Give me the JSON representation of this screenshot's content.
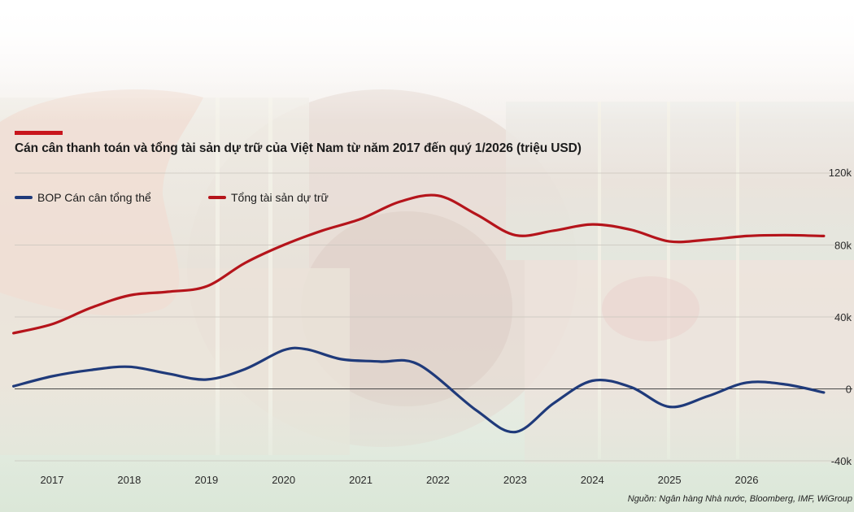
{
  "header": {
    "title": "Cán cân thanh toán và tổng tài sản dự trữ của Việt Nam từ năm 2017 đến quý 1/2026 (triệu USD)"
  },
  "footer": {
    "source": "Nguồn: Ngân hàng Nhà nước, Bloomberg, IMF, WiGroup"
  },
  "colors": {
    "accent": "#c8161d",
    "bop": "#1f3a7a",
    "reserves": "#b5141b"
  },
  "chart_data": {
    "type": "line",
    "title": "Cán cân thanh toán và tổng tài sản dự trữ của Việt Nam từ năm 2017 đến quý 1/2026 (triệu USD)",
    "xlabel": "",
    "ylabel": "",
    "x_ticks": [
      "2017",
      "2018",
      "2019",
      "2020",
      "2021",
      "2022",
      "2023",
      "2024",
      "2025",
      "2026"
    ],
    "y_ticks": [
      {
        "value": 120000,
        "label": "120k"
      },
      {
        "value": 80000,
        "label": "80k"
      },
      {
        "value": 40000,
        "label": "40k"
      },
      {
        "value": 0,
        "label": "0"
      },
      {
        "value": -40000,
        "label": "-40k"
      }
    ],
    "ylim": [
      -40000,
      120000
    ],
    "grid": true,
    "legend_position": "top-left",
    "series": [
      {
        "name": "BOP Cán cân tổng thể",
        "color": "#1f3a7a",
        "points": [
          {
            "x": 2016.5,
            "y": 1500
          },
          {
            "x": 2017.0,
            "y": 7000
          },
          {
            "x": 2017.5,
            "y": 10500
          },
          {
            "x": 2018.0,
            "y": 12300
          },
          {
            "x": 2018.5,
            "y": 8500
          },
          {
            "x": 2019.0,
            "y": 5200
          },
          {
            "x": 2019.5,
            "y": 11000
          },
          {
            "x": 2020.0,
            "y": 21500
          },
          {
            "x": 2020.3,
            "y": 22000
          },
          {
            "x": 2020.75,
            "y": 16500
          },
          {
            "x": 2021.25,
            "y": 15200
          },
          {
            "x": 2021.75,
            "y": 13500
          },
          {
            "x": 2022.5,
            "y": -12000
          },
          {
            "x": 2023.0,
            "y": -24000
          },
          {
            "x": 2023.5,
            "y": -8000
          },
          {
            "x": 2024.0,
            "y": 4500
          },
          {
            "x": 2024.5,
            "y": 1000
          },
          {
            "x": 2025.0,
            "y": -10000
          },
          {
            "x": 2025.5,
            "y": -4000
          },
          {
            "x": 2026.0,
            "y": 3500
          },
          {
            "x": 2026.5,
            "y": 2500
          },
          {
            "x": 2027.0,
            "y": -2000
          }
        ]
      },
      {
        "name": "Tổng tài sản dự trữ",
        "color": "#b5141b",
        "points": [
          {
            "x": 2016.5,
            "y": 31000
          },
          {
            "x": 2017.0,
            "y": 36000
          },
          {
            "x": 2017.5,
            "y": 45000
          },
          {
            "x": 2018.0,
            "y": 52000
          },
          {
            "x": 2018.5,
            "y": 54000
          },
          {
            "x": 2019.0,
            "y": 57000
          },
          {
            "x": 2019.5,
            "y": 70000
          },
          {
            "x": 2020.0,
            "y": 80000
          },
          {
            "x": 2020.5,
            "y": 88000
          },
          {
            "x": 2021.0,
            "y": 94500
          },
          {
            "x": 2021.5,
            "y": 104000
          },
          {
            "x": 2022.0,
            "y": 107500
          },
          {
            "x": 2022.5,
            "y": 97000
          },
          {
            "x": 2023.0,
            "y": 85500
          },
          {
            "x": 2023.5,
            "y": 88000
          },
          {
            "x": 2024.0,
            "y": 91500
          },
          {
            "x": 2024.5,
            "y": 88500
          },
          {
            "x": 2025.0,
            "y": 82000
          },
          {
            "x": 2025.5,
            "y": 83000
          },
          {
            "x": 2026.0,
            "y": 85000
          },
          {
            "x": 2026.5,
            "y": 85500
          },
          {
            "x": 2027.0,
            "y": 85000
          }
        ]
      }
    ]
  }
}
